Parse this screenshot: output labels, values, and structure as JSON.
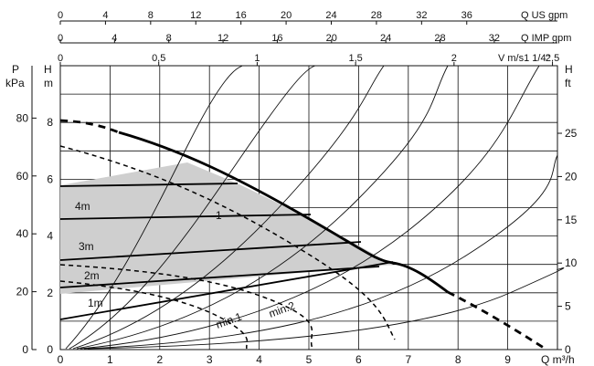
{
  "chart_data": {
    "type": "line",
    "title": "",
    "axes": {
      "x_bottom": {
        "label": "Q m³/h",
        "min": 0,
        "max": 10,
        "ticks": [
          "0",
          "1",
          "2",
          "3",
          "4",
          "5",
          "6",
          "7",
          "8",
          "9"
        ]
      },
      "x_top_usgpm": {
        "label": "Q US gpm",
        "ticks": [
          "0",
          "4",
          "8",
          "12",
          "16",
          "20",
          "24",
          "28",
          "32",
          "36"
        ]
      },
      "x_top_impgpm": {
        "label": "Q IMP gpm",
        "ticks": [
          "0",
          "4",
          "8",
          "12",
          "16",
          "20",
          "24",
          "28",
          "32"
        ]
      },
      "x_top_velocity": {
        "label": "V m/s1 1/4\"",
        "ticks": [
          "0",
          "0,5",
          "1",
          "1,5",
          "2",
          "2,5"
        ]
      },
      "y_left_head": {
        "label_top": "H",
        "label_bottom": "m",
        "min": 0,
        "max": 10,
        "ticks": [
          "0",
          "2",
          "4",
          "6",
          "8"
        ]
      },
      "y_left_pressure": {
        "label_top": "P",
        "label_bottom": "kPa",
        "ticks": [
          "0",
          "20",
          "40",
          "60",
          "80"
        ]
      },
      "y_right_feet": {
        "label_top": "H",
        "label_bottom": "ft",
        "ticks": [
          "0",
          "5",
          "10",
          "15",
          "20",
          "25"
        ]
      }
    },
    "grid": true,
    "series": [
      {
        "name": "",
        "style": "thick-solid-with-dashed-ends",
        "points": [
          [
            0,
            8.15
          ],
          [
            0.5,
            8.0
          ],
          [
            1,
            7.7
          ],
          [
            1.5,
            7.35
          ],
          [
            2,
            7.0
          ],
          [
            2.5,
            6.6
          ],
          [
            3,
            6.2
          ],
          [
            3.5,
            5.8
          ],
          [
            4,
            5.35
          ],
          [
            4.5,
            4.9
          ],
          [
            5,
            4.45
          ],
          [
            5.5,
            4.0
          ],
          [
            6,
            3.55
          ],
          [
            6.5,
            3.1
          ],
          [
            7,
            2.65
          ],
          [
            7.5,
            2.2
          ],
          [
            8,
            1.75
          ],
          [
            8.5,
            1.3
          ],
          [
            9,
            0.85
          ],
          [
            9.5,
            0.3
          ]
        ]
      },
      {
        "name": "",
        "style": "thick-dashed",
        "points": [
          [
            0,
            7.1
          ],
          [
            1,
            6.35
          ],
          [
            2,
            5.5
          ],
          [
            3,
            4.6
          ],
          [
            4,
            3.6
          ],
          [
            5,
            2.6
          ],
          [
            6,
            1.6
          ],
          [
            6.7,
            0.7
          ]
        ]
      },
      {
        "name": "1",
        "style": "dashed",
        "points": [
          [
            0,
            7.0
          ],
          [
            1,
            6.4
          ],
          [
            2,
            5.6
          ],
          [
            3,
            4.7
          ],
          [
            4,
            3.6
          ],
          [
            5,
            2.6
          ],
          [
            6,
            1.7
          ],
          [
            6.7,
            0.7
          ]
        ]
      },
      {
        "name": "min.2",
        "style": "dashed",
        "points": [
          [
            0,
            3.0
          ],
          [
            1,
            2.85
          ],
          [
            2,
            2.6
          ],
          [
            3,
            2.2
          ],
          [
            4,
            1.6
          ],
          [
            5,
            0.8
          ],
          [
            5.4,
            0.3
          ]
        ]
      },
      {
        "name": "min.1",
        "style": "dashed",
        "points": [
          [
            0,
            2.0
          ],
          [
            1,
            1.85
          ],
          [
            2,
            1.6
          ],
          [
            3,
            1.1
          ],
          [
            3.6,
            0.5
          ]
        ]
      },
      {
        "name": "1m",
        "style": "solid",
        "points": [
          [
            0,
            1.1
          ],
          [
            6.7,
            3.1
          ]
        ]
      },
      {
        "name": "2m",
        "style": "solid",
        "points": [
          [
            0,
            3.2
          ],
          [
            6.7,
            3.1
          ]
        ]
      },
      {
        "name": "3m",
        "style": "solid",
        "points": [
          [
            0,
            4.1
          ],
          [
            5.8,
            4.0
          ]
        ]
      },
      {
        "name": "4m",
        "style": "solid",
        "points": [
          [
            0,
            4.8
          ],
          [
            5.2,
            4.9
          ]
        ]
      }
    ],
    "curve_labels": [
      "1m",
      "2m",
      "3m",
      "4m",
      "1",
      "min.1",
      "min.2"
    ]
  }
}
